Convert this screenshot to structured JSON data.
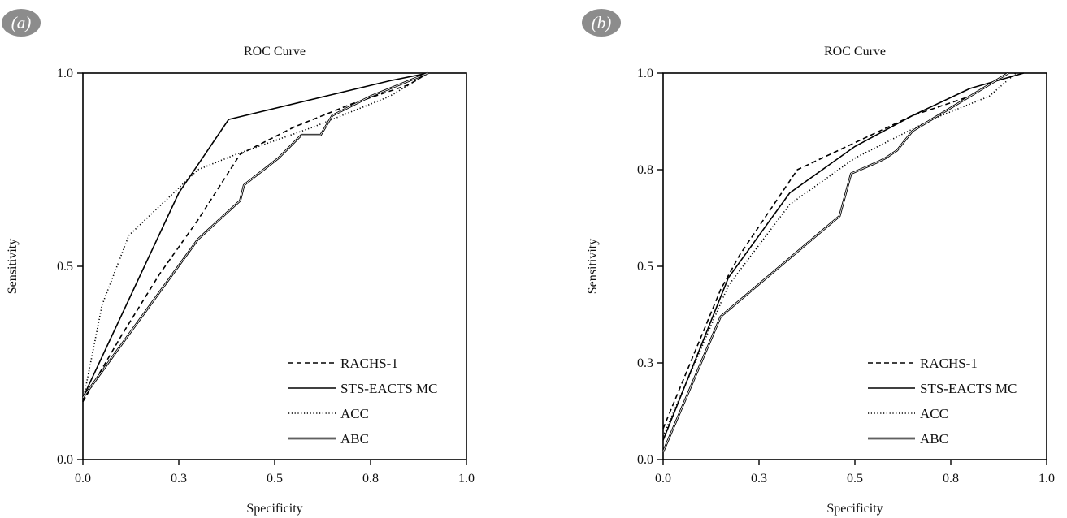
{
  "chart_data": [
    {
      "panel_label": "(a)",
      "type": "line",
      "title": "ROC Curve",
      "xlabel": "Specificity",
      "ylabel": "Sensitivity",
      "xlim": [
        0,
        1
      ],
      "ylim": [
        0,
        1
      ],
      "xticks": [
        0.0,
        0.25,
        0.5,
        0.75,
        1.0
      ],
      "xtick_labels": [
        "0.0",
        "0.3",
        "0.5",
        "0.8",
        "1.0"
      ],
      "yticks": [
        0.0,
        0.5,
        1.0
      ],
      "ytick_labels": [
        "0.0",
        "0.5",
        "1.0"
      ],
      "legend_position": "bottom-right",
      "series": [
        {
          "name": "RACHS-1",
          "dash": "dashed",
          "points": [
            [
              0,
              0.15
            ],
            [
              0.1,
              0.32
            ],
            [
              0.2,
              0.48
            ],
            [
              0.3,
              0.62
            ],
            [
              0.41,
              0.79
            ],
            [
              0.55,
              0.86
            ],
            [
              0.7,
              0.92
            ],
            [
              0.85,
              0.97
            ],
            [
              0.9,
              1.0
            ]
          ]
        },
        {
          "name": "STS-EACTS MC",
          "dash": "solid",
          "points": [
            [
              0,
              0.16
            ],
            [
              0.25,
              0.69
            ],
            [
              0.38,
              0.88
            ],
            [
              0.8,
              0.98
            ],
            [
              0.9,
              1.0
            ]
          ]
        },
        {
          "name": "ACC",
          "dash": "dotted",
          "points": [
            [
              0,
              0.15
            ],
            [
              0.05,
              0.4
            ],
            [
              0.12,
              0.58
            ],
            [
              0.3,
              0.75
            ],
            [
              0.4,
              0.79
            ],
            [
              0.6,
              0.86
            ],
            [
              0.8,
              0.94
            ],
            [
              0.9,
              1.0
            ]
          ]
        },
        {
          "name": "ABC",
          "dash": "double",
          "points": [
            [
              0,
              0.16
            ],
            [
              0.3,
              0.57
            ],
            [
              0.41,
              0.67
            ],
            [
              0.42,
              0.71
            ],
            [
              0.51,
              0.78
            ],
            [
              0.54,
              0.81
            ],
            [
              0.57,
              0.84
            ],
            [
              0.6,
              0.84
            ],
            [
              0.62,
              0.84
            ],
            [
              0.65,
              0.89
            ],
            [
              0.75,
              0.94
            ],
            [
              0.9,
              1.0
            ]
          ]
        }
      ]
    },
    {
      "panel_label": "(b)",
      "type": "line",
      "title": "ROC Curve",
      "xlabel": "Specificity",
      "ylabel": "Sensitivity",
      "xlim": [
        0,
        1
      ],
      "ylim": [
        0,
        1
      ],
      "xticks": [
        0.0,
        0.25,
        0.5,
        0.75,
        1.0
      ],
      "xtick_labels": [
        "0.0",
        "0.3",
        "0.5",
        "0.8",
        "1.0"
      ],
      "yticks": [
        0.0,
        0.25,
        0.5,
        0.75,
        1.0
      ],
      "ytick_labels": [
        "0.0",
        "0.3",
        "0.5",
        "0.8",
        "1.0"
      ],
      "legend_position": "bottom-right",
      "series": [
        {
          "name": "RACHS-1",
          "dash": "dashed",
          "points": [
            [
              0,
              0.08
            ],
            [
              0.15,
              0.44
            ],
            [
              0.2,
              0.53
            ],
            [
              0.35,
              0.75
            ],
            [
              0.5,
              0.82
            ],
            [
              0.65,
              0.89
            ],
            [
              0.8,
              0.94
            ],
            [
              0.9,
              1.0
            ]
          ]
        },
        {
          "name": "STS-EACTS MC",
          "dash": "solid",
          "points": [
            [
              0,
              0.05
            ],
            [
              0.17,
              0.47
            ],
            [
              0.33,
              0.69
            ],
            [
              0.5,
              0.81
            ],
            [
              0.65,
              0.89
            ],
            [
              0.8,
              0.96
            ],
            [
              0.94,
              1.0
            ]
          ]
        },
        {
          "name": "ACC",
          "dash": "dotted",
          "points": [
            [
              0,
              0.06
            ],
            [
              0.17,
              0.45
            ],
            [
              0.33,
              0.66
            ],
            [
              0.5,
              0.78
            ],
            [
              0.7,
              0.88
            ],
            [
              0.85,
              0.94
            ],
            [
              0.92,
              1.0
            ]
          ]
        },
        {
          "name": "ABC",
          "dash": "double",
          "points": [
            [
              0,
              0.02
            ],
            [
              0.15,
              0.37
            ],
            [
              0.46,
              0.63
            ],
            [
              0.49,
              0.74
            ],
            [
              0.56,
              0.77
            ],
            [
              0.58,
              0.78
            ],
            [
              0.61,
              0.8
            ],
            [
              0.65,
              0.85
            ],
            [
              0.8,
              0.94
            ],
            [
              0.9,
              1.0
            ]
          ]
        }
      ]
    }
  ]
}
